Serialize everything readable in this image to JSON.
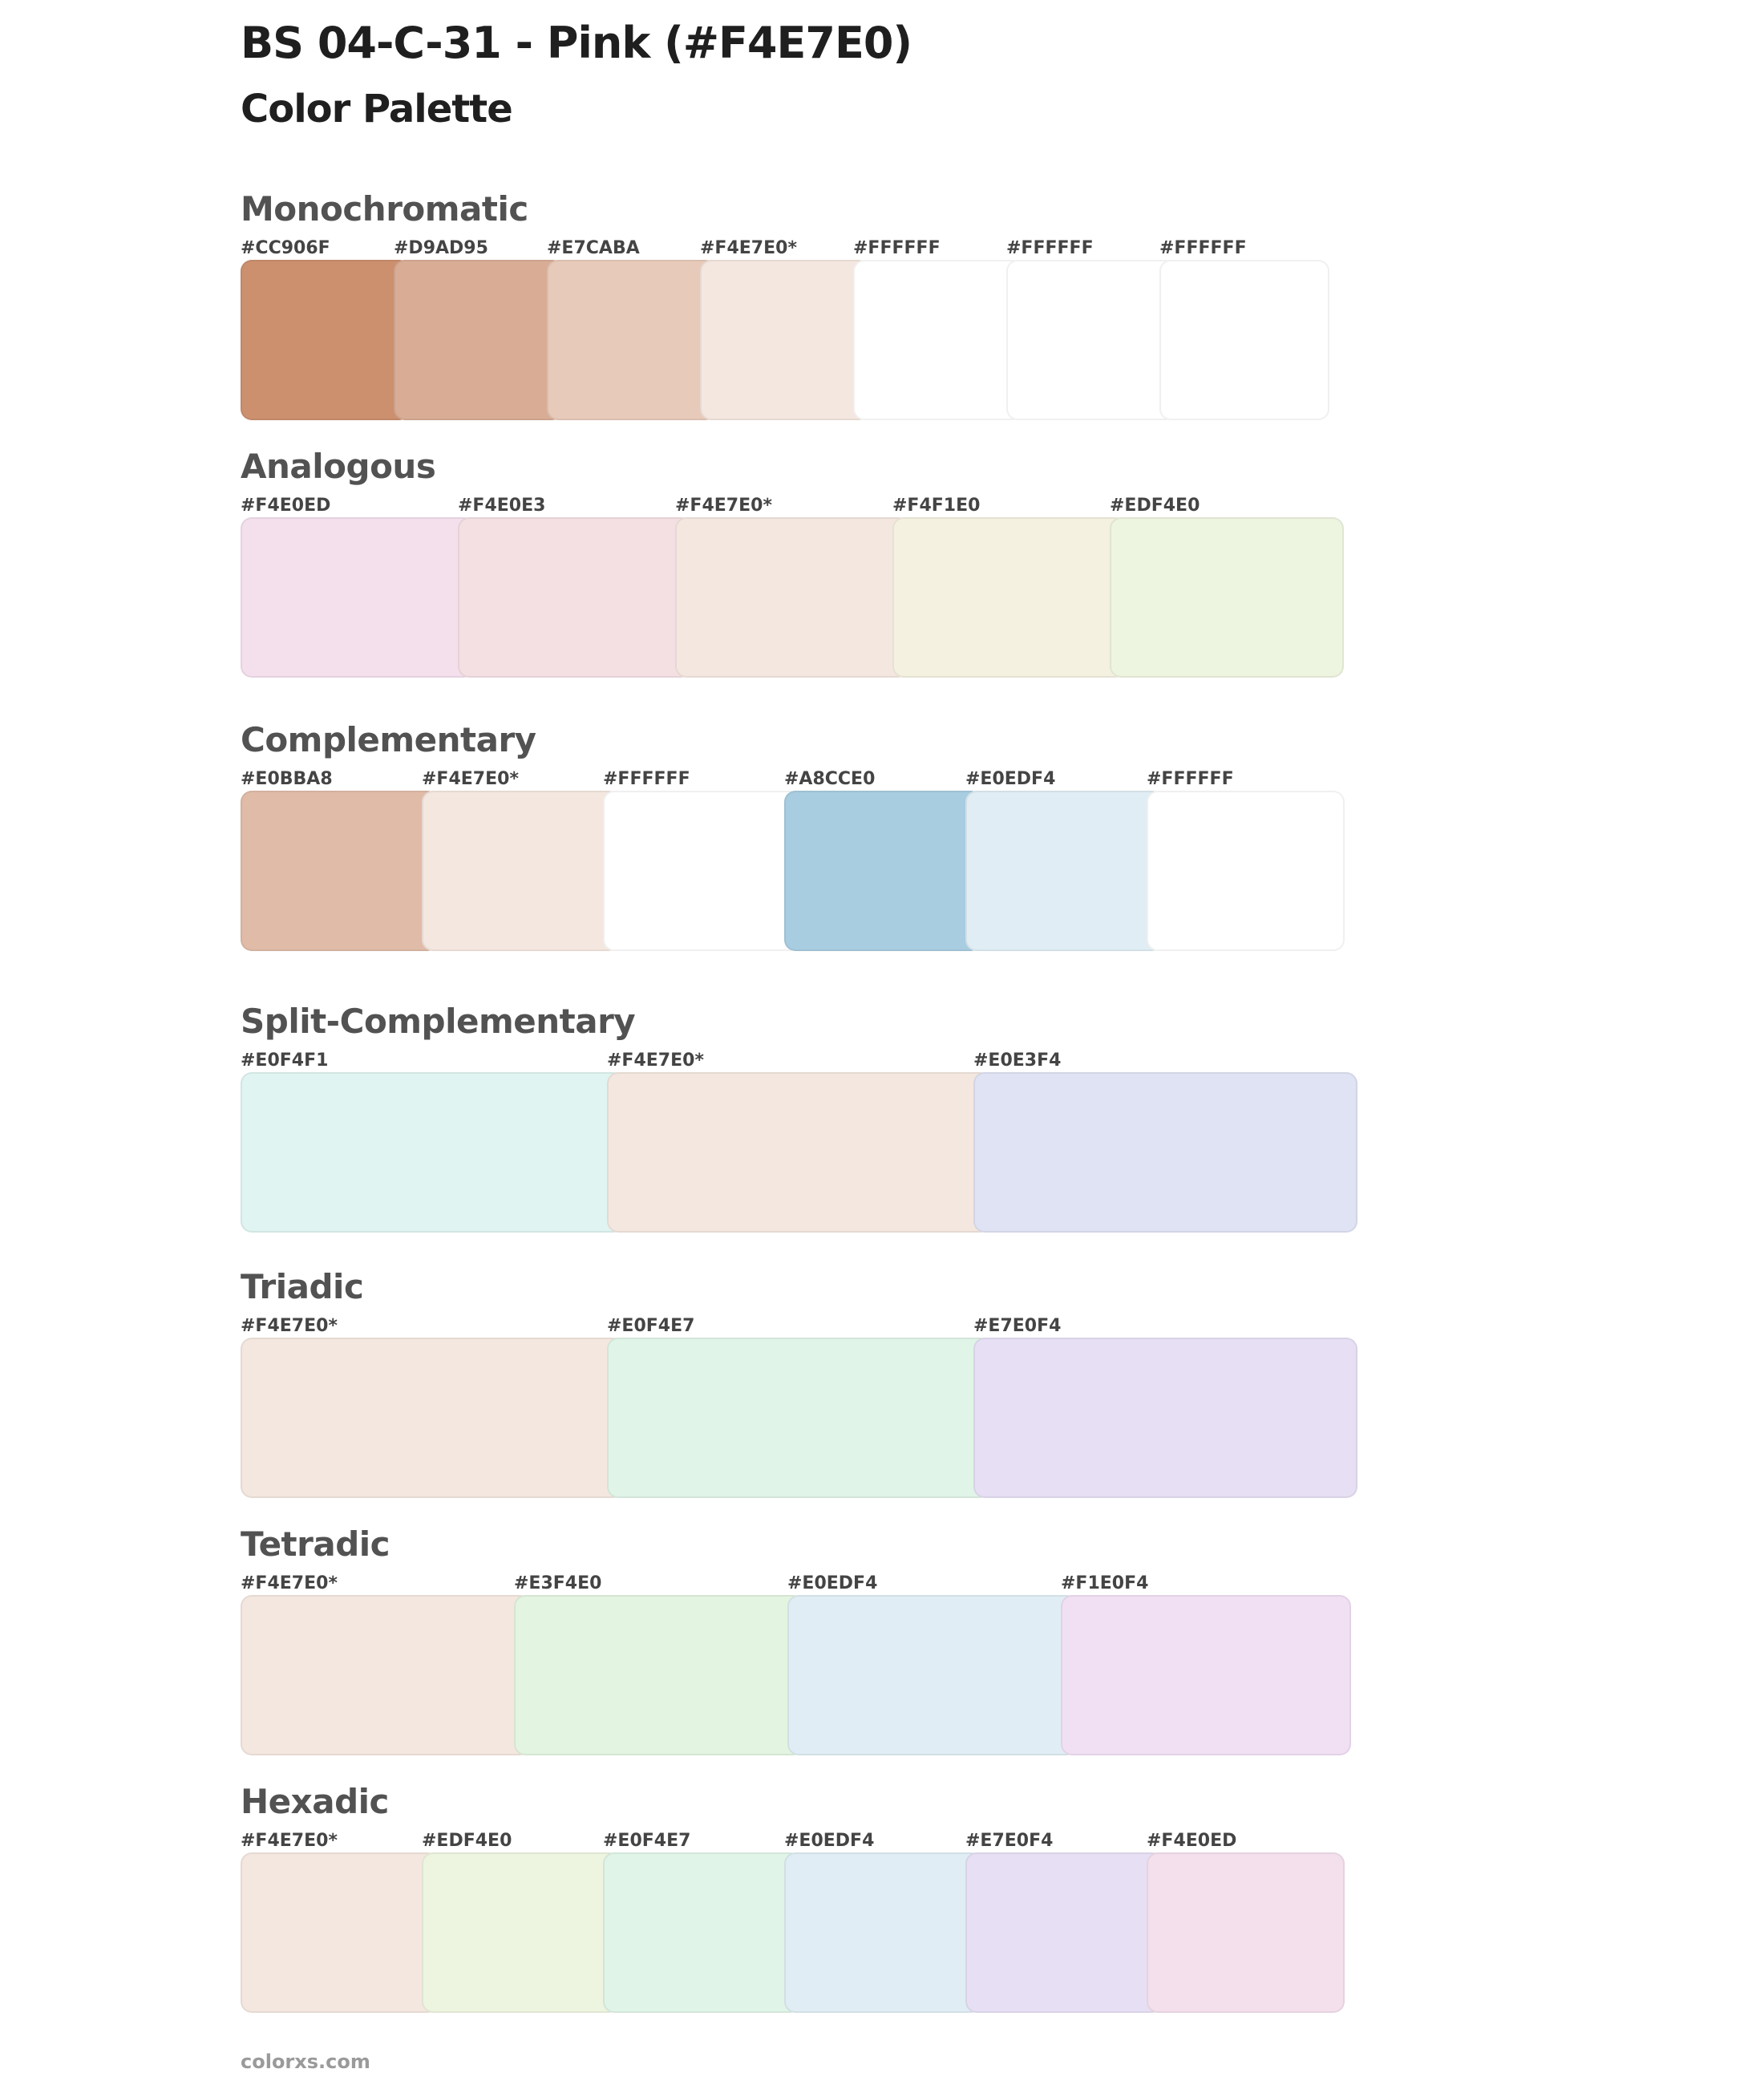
{
  "title": "BS 04-C-31 - Pink (#F4E7E0)",
  "subtitle": "Color Palette",
  "sections": [
    {
      "name": "Monochromatic",
      "swatches": [
        {
          "label": "#CC906F",
          "color": "#CC906F"
        },
        {
          "label": "#D9AD95",
          "color": "#D9AD95"
        },
        {
          "label": "#E7CABA",
          "color": "#E7CABA"
        },
        {
          "label": "#F4E7E0*",
          "color": "#F4E7E0"
        },
        {
          "label": "#FFFFFF",
          "color": "#FFFFFF"
        },
        {
          "label": "#FFFFFF",
          "color": "#FFFFFF"
        },
        {
          "label": "#FFFFFF",
          "color": "#FFFFFF"
        }
      ]
    },
    {
      "name": "Analogous",
      "swatches": [
        {
          "label": "#F4E0ED",
          "color": "#F4E0ED"
        },
        {
          "label": "#F4E0E3",
          "color": "#F4E0E3"
        },
        {
          "label": "#F4E7E0*",
          "color": "#F4E7E0"
        },
        {
          "label": "#F4F1E0",
          "color": "#F4F1E0"
        },
        {
          "label": "#EDF4E0",
          "color": "#EDF4E0"
        }
      ]
    },
    {
      "name": "Complementary",
      "swatches": [
        {
          "label": "#E0BBA8",
          "color": "#E0BBA8"
        },
        {
          "label": "#F4E7E0*",
          "color": "#F4E7E0"
        },
        {
          "label": "#FFFFFF",
          "color": "#FFFFFF"
        },
        {
          "label": "#A8CCE0",
          "color": "#A8CCE0"
        },
        {
          "label": "#E0EDF4",
          "color": "#E0EDF4"
        },
        {
          "label": "#FFFFFF",
          "color": "#FFFFFF"
        }
      ]
    },
    {
      "name": "Split-Complementary",
      "swatches": [
        {
          "label": "#E0F4F1",
          "color": "#E0F4F1"
        },
        {
          "label": "#F4E7E0*",
          "color": "#F4E7E0"
        },
        {
          "label": "#E0E3F4",
          "color": "#E0E3F4"
        }
      ]
    },
    {
      "name": "Triadic",
      "swatches": [
        {
          "label": "#F4E7E0*",
          "color": "#F4E7E0"
        },
        {
          "label": "#E0F4E7",
          "color": "#E0F4E7"
        },
        {
          "label": "#E7E0F4",
          "color": "#E7E0F4"
        }
      ]
    },
    {
      "name": "Tetradic",
      "swatches": [
        {
          "label": "#F4E7E0*",
          "color": "#F4E7E0"
        },
        {
          "label": "#E3F4E0",
          "color": "#E3F4E0"
        },
        {
          "label": "#E0EDF4",
          "color": "#E0EDF4"
        },
        {
          "label": "#F1E0F4",
          "color": "#F1E0F4"
        }
      ]
    },
    {
      "name": "Hexadic",
      "swatches": [
        {
          "label": "#F4E7E0*",
          "color": "#F4E7E0"
        },
        {
          "label": "#EDF4E0",
          "color": "#EDF4E0"
        },
        {
          "label": "#E0F4E7",
          "color": "#E0F4E7"
        },
        {
          "label": "#E0EDF4",
          "color": "#E0EDF4"
        },
        {
          "label": "#E7E0F4",
          "color": "#E7E0F4"
        },
        {
          "label": "#F4E0ED",
          "color": "#F4E0ED"
        }
      ]
    }
  ],
  "footer": "colorxs.com"
}
